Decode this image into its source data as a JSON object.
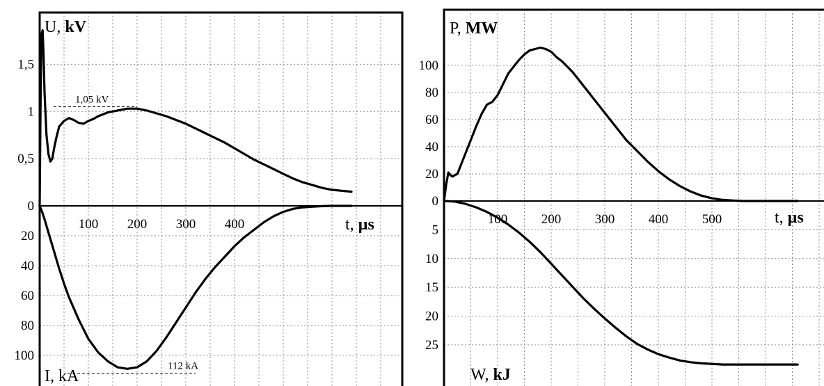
{
  "chart_data": [
    {
      "type": "line",
      "panel": "left",
      "series": [
        {
          "name": "U, kV",
          "upper_label": "U,",
          "upper_unit": "kV",
          "x": [
            0,
            2,
            4,
            6,
            8,
            10,
            14,
            18,
            22,
            26,
            30,
            35,
            40,
            50,
            60,
            70,
            80,
            90,
            100,
            110,
            120,
            130,
            140,
            160,
            180,
            200,
            220,
            240,
            260,
            280,
            300,
            320,
            340,
            360,
            380,
            400,
            420,
            440,
            460,
            480,
            500,
            520,
            540,
            560,
            580,
            600,
            620,
            640
          ],
          "y": [
            0,
            1.2,
            1.82,
            1.86,
            1.6,
            1.2,
            0.75,
            0.55,
            0.47,
            0.5,
            0.62,
            0.74,
            0.84,
            0.9,
            0.93,
            0.91,
            0.88,
            0.87,
            0.9,
            0.92,
            0.95,
            0.97,
            0.99,
            1.01,
            1.03,
            1.03,
            1.01,
            0.98,
            0.95,
            0.91,
            0.87,
            0.82,
            0.77,
            0.72,
            0.67,
            0.61,
            0.55,
            0.49,
            0.44,
            0.39,
            0.34,
            0.29,
            0.25,
            0.22,
            0.19,
            0.17,
            0.16,
            0.15
          ]
        },
        {
          "name": "I, kA",
          "lower_label": "I, kA",
          "x": [
            0,
            5,
            10,
            20,
            30,
            40,
            50,
            60,
            80,
            100,
            120,
            140,
            160,
            180,
            200,
            220,
            240,
            260,
            280,
            300,
            320,
            340,
            360,
            380,
            400,
            420,
            440,
            460,
            480,
            500,
            520,
            540,
            560,
            580,
            600,
            620,
            640
          ],
          "y": [
            0,
            4,
            9,
            20,
            31,
            42,
            52,
            61,
            76,
            89,
            98,
            104,
            108,
            109,
            108,
            104,
            97,
            88,
            78,
            68,
            58,
            49,
            41,
            34,
            27,
            21,
            16,
            11,
            7,
            4,
            2,
            1,
            0.5,
            0.2,
            0,
            0,
            0
          ]
        }
      ],
      "x_axis": {
        "label": "t,",
        "unit": "µs",
        "ticks": [
          "100",
          "200",
          "300",
          "400"
        ],
        "range": [
          0,
          640
        ]
      },
      "y_axis_upper": {
        "ticks": [
          "0",
          "0,5",
          "1",
          "1,5"
        ],
        "range": [
          0,
          1.96
        ]
      },
      "y_axis_lower": {
        "ticks": [
          "20",
          "40",
          "60",
          "80",
          "100"
        ],
        "range": [
          0,
          114
        ],
        "inverted": true
      },
      "annotations": [
        {
          "text": "1,05 kV",
          "x": 130,
          "y": 1.05
        },
        {
          "text": "112 kA",
          "x": 320,
          "y": 112
        }
      ],
      "grid": true
    },
    {
      "type": "line",
      "panel": "right",
      "series": [
        {
          "name": "P, MW",
          "upper_label": "P,",
          "upper_unit": "MW",
          "x": [
            0,
            4,
            8,
            12,
            16,
            20,
            25,
            30,
            40,
            50,
            60,
            70,
            80,
            90,
            100,
            110,
            120,
            130,
            140,
            150,
            160,
            170,
            180,
            190,
            200,
            210,
            220,
            230,
            240,
            260,
            280,
            300,
            320,
            340,
            360,
            380,
            400,
            420,
            440,
            460,
            480,
            500,
            520,
            540,
            560,
            580,
            600,
            620,
            640,
            660
          ],
          "y": [
            0,
            12,
            21,
            19,
            18,
            19,
            20,
            25,
            35,
            45,
            55,
            64,
            71,
            73,
            78,
            86,
            94,
            99,
            104,
            108,
            111,
            112,
            113,
            112,
            110,
            106,
            103,
            99,
            95,
            85,
            75,
            65,
            55,
            45,
            37,
            29,
            22,
            16,
            11,
            7,
            4,
            2,
            0.8,
            0.3,
            0,
            0,
            0,
            0,
            0,
            0
          ]
        },
        {
          "name": "W, kJ",
          "lower_label": "W,",
          "lower_unit": "kJ",
          "x": [
            0,
            20,
            40,
            60,
            80,
            100,
            120,
            140,
            160,
            180,
            200,
            220,
            240,
            260,
            280,
            300,
            320,
            340,
            360,
            380,
            400,
            420,
            440,
            460,
            480,
            500,
            520,
            540,
            560,
            580,
            600,
            620,
            640,
            660
          ],
          "y": [
            0,
            0.1,
            0.5,
            1.1,
            1.9,
            2.9,
            4.1,
            5.5,
            7.1,
            8.9,
            10.9,
            12.9,
            14.9,
            16.9,
            18.7,
            20.4,
            22,
            23.5,
            24.8,
            25.8,
            26.6,
            27.2,
            27.7,
            28,
            28.2,
            28.3,
            28.4,
            28.4,
            28.4,
            28.4,
            28.4,
            28.4,
            28.4,
            28.4
          ]
        }
      ],
      "x_axis": {
        "label": "t,",
        "unit": "µs",
        "ticks": [
          "100",
          "200",
          "300",
          "400",
          "500"
        ],
        "range": [
          0,
          660
        ]
      },
      "y_axis_upper": {
        "ticks": [
          "0",
          "20",
          "40",
          "60",
          "80",
          "100"
        ],
        "range": [
          0,
          123
        ]
      },
      "y_axis_lower": {
        "ticks": [
          "5",
          "10",
          "15",
          "20",
          "25"
        ],
        "range": [
          0,
          29.6
        ],
        "inverted": true
      },
      "grid": true
    }
  ]
}
